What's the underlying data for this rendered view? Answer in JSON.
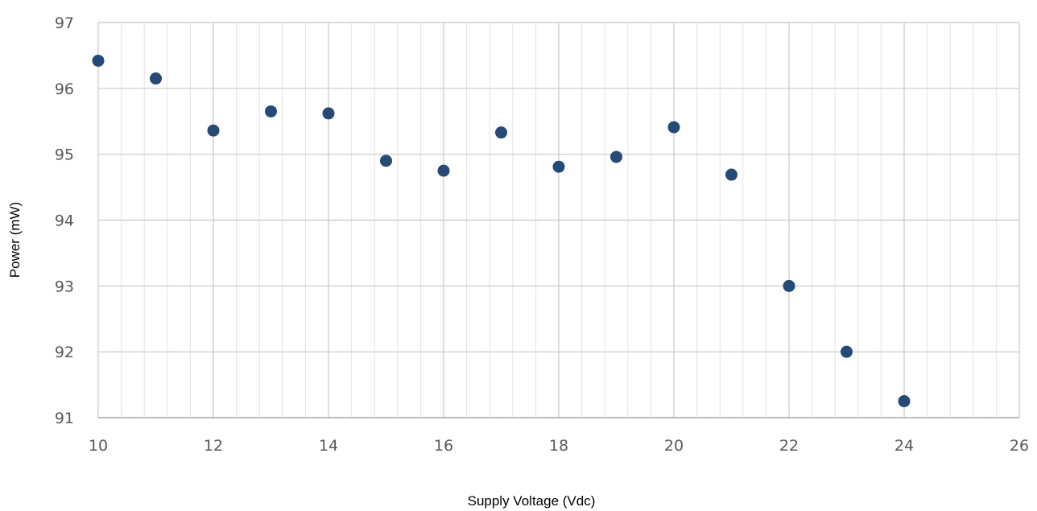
{
  "chart_data": {
    "type": "scatter",
    "title": "",
    "xlabel": "Supply Voltage (Vdc)",
    "ylabel": "Power (mW)",
    "xlim": [
      10,
      26
    ],
    "ylim": [
      91,
      97
    ],
    "x_major_ticks": [
      10,
      12,
      14,
      16,
      18,
      20,
      22,
      24,
      26
    ],
    "y_major_ticks": [
      91,
      92,
      93,
      94,
      95,
      96,
      97
    ],
    "x_minor_step": 0.4,
    "grid": true,
    "legend": "none",
    "series": [
      {
        "color": "#264a78",
        "points": [
          {
            "x": 10,
            "y": 96.42
          },
          {
            "x": 11,
            "y": 96.15
          },
          {
            "x": 12,
            "y": 95.36
          },
          {
            "x": 13,
            "y": 95.65
          },
          {
            "x": 14,
            "y": 95.62
          },
          {
            "x": 15,
            "y": 94.9
          },
          {
            "x": 16,
            "y": 94.75
          },
          {
            "x": 17,
            "y": 95.33
          },
          {
            "x": 18,
            "y": 94.81
          },
          {
            "x": 19,
            "y": 94.96
          },
          {
            "x": 20,
            "y": 95.41
          },
          {
            "x": 21,
            "y": 94.69
          },
          {
            "x": 22,
            "y": 93.0
          },
          {
            "x": 23,
            "y": 92.0
          },
          {
            "x": 24,
            "y": 91.25
          }
        ]
      }
    ]
  }
}
